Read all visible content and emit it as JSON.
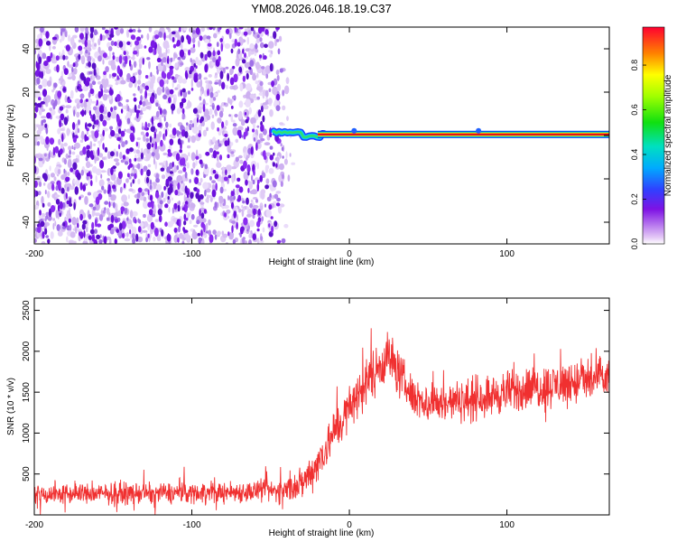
{
  "title": "YM08.2026.046.18.19.C37",
  "chart_data": [
    {
      "type": "heatmap",
      "xlabel": "Height of straight line (km)",
      "ylabel": "Frequency (Hz)",
      "xlim": [
        -200,
        165
      ],
      "ylim": [
        -50,
        50
      ],
      "x_ticks": [
        -200,
        -100,
        0,
        100
      ],
      "x_tick_labels": [
        "-200",
        "-100",
        "0",
        "100"
      ],
      "y_ticks": [
        -40,
        -20,
        0,
        20,
        40
      ],
      "y_tick_labels": [
        "-40",
        "-20",
        "0",
        "20",
        "40"
      ],
      "noise_region_x": [
        -200,
        -33
      ],
      "signal_line": {
        "x_range": [
          -48,
          165
        ],
        "frequency": 0.5
      },
      "colorbar": {
        "label": "Normalized spectral amplitude",
        "range": [
          0,
          0.97
        ],
        "ticks": [
          0.0,
          0.2,
          0.4,
          0.6,
          0.8
        ],
        "tick_labels": [
          "0.0",
          "0.2",
          "0.4",
          "0.6",
          "0.8"
        ]
      }
    },
    {
      "type": "line",
      "color": "#f03030",
      "xlabel": "Height of straight line (km)",
      "ylabel": "SNR (10 * v/v)",
      "xlim": [
        -200,
        165
      ],
      "ylim": [
        0,
        2650
      ],
      "x_ticks": [
        -200,
        -100,
        0,
        100
      ],
      "x_tick_labels": [
        "-200",
        "-100",
        "0",
        "100"
      ],
      "y_ticks": [
        500,
        1000,
        1500,
        2000,
        2500
      ],
      "y_tick_labels": [
        "500",
        "1000",
        "1500",
        "2000",
        "2500"
      ],
      "trend": {
        "x": [
          -200,
          -100,
          -50,
          -40,
          -30,
          -20,
          -10,
          0,
          10,
          20,
          25,
          30,
          40,
          50,
          60,
          80,
          100,
          120,
          140,
          160,
          165
        ],
        "center": [
          250,
          270,
          290,
          310,
          380,
          640,
          1000,
          1300,
          1600,
          1850,
          1950,
          1780,
          1450,
          1350,
          1370,
          1420,
          1500,
          1560,
          1610,
          1660,
          1670
        ],
        "spread": [
          190,
          190,
          200,
          230,
          300,
          380,
          400,
          420,
          430,
          450,
          480,
          430,
          360,
          340,
          350,
          370,
          380,
          400,
          410,
          410,
          410
        ]
      }
    }
  ]
}
